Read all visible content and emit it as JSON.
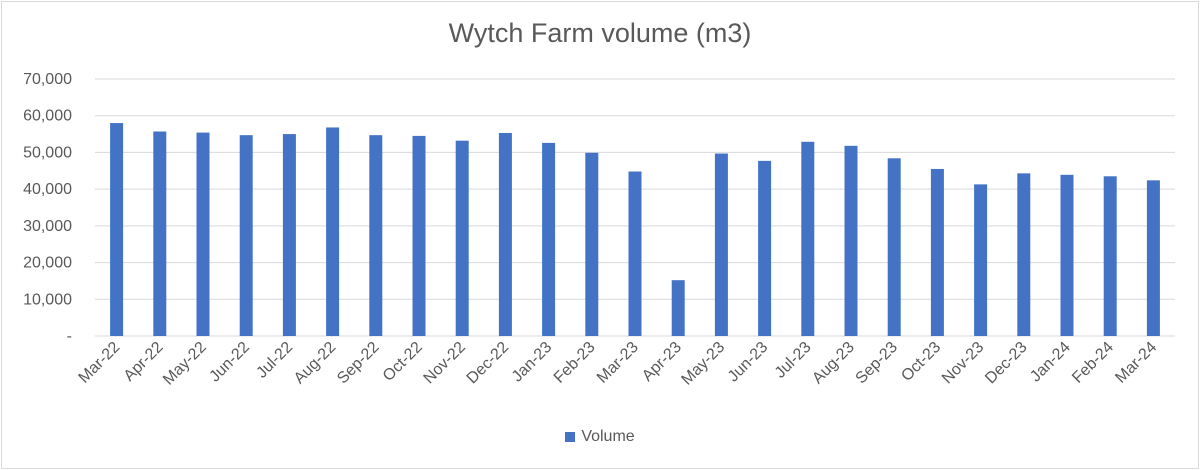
{
  "chart_data": {
    "type": "bar",
    "title": "Wytch Farm volume (m3)",
    "categories": [
      "Mar-22",
      "Apr-22",
      "May-22",
      "Jun-22",
      "Jul-22",
      "Aug-22",
      "Sep-22",
      "Oct-22",
      "Nov-22",
      "Dec-22",
      "Jan-23",
      "Feb-23",
      "Mar-23",
      "Apr-23",
      "May-23",
      "Jun-23",
      "Jul-23",
      "Aug-23",
      "Sep-23",
      "Oct-23",
      "Nov-23",
      "Dec-23",
      "Jan-24",
      "Feb-24",
      "Mar-24"
    ],
    "series": [
      {
        "name": "Volume",
        "color": "#4472c4",
        "values": [
          58000,
          55700,
          55400,
          54700,
          55000,
          56800,
          54700,
          54500,
          53200,
          55300,
          52600,
          49900,
          44800,
          15200,
          49700,
          47700,
          52900,
          51800,
          48400,
          45500,
          41300,
          44300,
          43900,
          43500,
          42400
        ]
      }
    ],
    "ylim": [
      0,
      70000
    ],
    "yticks": [
      0,
      10000,
      20000,
      30000,
      40000,
      50000,
      60000,
      70000
    ],
    "ytick_labels": [
      "-",
      "10,000",
      "20,000",
      "30,000",
      "40,000",
      "50,000",
      "60,000",
      "70,000"
    ],
    "xlabel": "",
    "ylabel": "",
    "grid": true,
    "legend": "bottom"
  }
}
